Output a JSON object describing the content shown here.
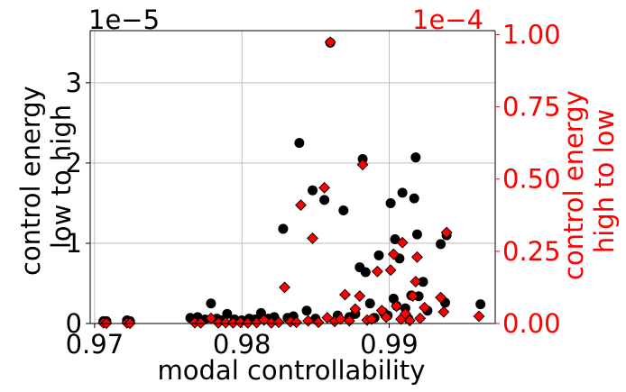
{
  "chart_data": {
    "type": "scatter",
    "xlabel": "modal controllability",
    "ylabel_left": "control energy\nlow to high",
    "ylabel_right": "control energy\nhigh to low",
    "offset_left": "1e−5",
    "offset_right": "1e−4",
    "xlim": [
      0.9697,
      0.9972
    ],
    "ylim_left": [
      0,
      3.65
    ],
    "ylim_right": [
      0,
      1.0138
    ],
    "xticks": [
      0.97,
      0.98,
      0.99
    ],
    "xtick_labels": [
      "0.97",
      "0.98",
      "0.99"
    ],
    "yticks_left": [
      0,
      1,
      2,
      3
    ],
    "ytick_labels_left": [
      "0",
      "1",
      "2",
      "3"
    ],
    "yticks_right": [
      0.0,
      0.25,
      0.5,
      0.75,
      1.0
    ],
    "ytick_labels_right": [
      "0.00",
      "0.25",
      "0.50",
      "0.75",
      "1.00"
    ],
    "grid": true,
    "colors": {
      "left": "#000000",
      "right": "#ff0000"
    },
    "series": [
      {
        "axis": "left",
        "marker": "circle",
        "color": "#000000",
        "points": [
          [
            0.9706,
            0.03
          ],
          [
            0.9708,
            0.03
          ],
          [
            0.9722,
            0.04
          ],
          [
            0.9724,
            0.03
          ],
          [
            0.9765,
            0.07
          ],
          [
            0.977,
            0.08
          ],
          [
            0.9775,
            0.05
          ],
          [
            0.9779,
            0.25
          ],
          [
            0.9783,
            0.06
          ],
          [
            0.9786,
            0.04
          ],
          [
            0.979,
            0.12
          ],
          [
            0.9795,
            0.05
          ],
          [
            0.98,
            0.04
          ],
          [
            0.9805,
            0.06
          ],
          [
            0.9809,
            0.05
          ],
          [
            0.9813,
            0.13
          ],
          [
            0.9818,
            0.06
          ],
          [
            0.9822,
            0.08
          ],
          [
            0.9828,
            1.18
          ],
          [
            0.9831,
            0.07
          ],
          [
            0.9835,
            0.09
          ],
          [
            0.9839,
            2.25
          ],
          [
            0.9844,
            0.16
          ],
          [
            0.9848,
            1.66
          ],
          [
            0.985,
            0.06
          ],
          [
            0.9856,
            1.54
          ],
          [
            0.986,
            3.5
          ],
          [
            0.9865,
            0.1
          ],
          [
            0.9869,
            1.41
          ],
          [
            0.9873,
            0.08
          ],
          [
            0.9877,
            0.12
          ],
          [
            0.988,
            0.7
          ],
          [
            0.9882,
            2.05
          ],
          [
            0.9884,
            0.64
          ],
          [
            0.9887,
            0.25
          ],
          [
            0.989,
            0.07
          ],
          [
            0.9893,
            0.85
          ],
          [
            0.9896,
            0.14
          ],
          [
            0.9899,
            0.1
          ],
          [
            0.9901,
            1.5
          ],
          [
            0.9903,
            0.31
          ],
          [
            0.9904,
            1.05
          ],
          [
            0.9905,
            0.22
          ],
          [
            0.9907,
            0.81
          ],
          [
            0.9909,
            1.63
          ],
          [
            0.9911,
            0.19
          ],
          [
            0.9913,
            0.06
          ],
          [
            0.9915,
            0.35
          ],
          [
            0.9917,
            1.56
          ],
          [
            0.9918,
            2.07
          ],
          [
            0.9919,
            1.11
          ],
          [
            0.992,
            0.34
          ],
          [
            0.9923,
            0.52
          ],
          [
            0.9926,
            0.16
          ],
          [
            0.9935,
            0.99
          ],
          [
            0.9938,
            0.26
          ],
          [
            0.9939,
            1.1
          ],
          [
            0.9962,
            0.24
          ]
        ]
      },
      {
        "axis": "right",
        "marker": "diamond",
        "color": "#ff0000",
        "points": [
          [
            0.9706,
            0.002
          ],
          [
            0.9708,
            0.001
          ],
          [
            0.9722,
            0.002
          ],
          [
            0.9724,
            0.001
          ],
          [
            0.9768,
            0.003
          ],
          [
            0.9772,
            0.002
          ],
          [
            0.9779,
            0.018
          ],
          [
            0.9784,
            0.002
          ],
          [
            0.9789,
            0.003
          ],
          [
            0.9794,
            0.002
          ],
          [
            0.9799,
            0.004
          ],
          [
            0.9804,
            0.002
          ],
          [
            0.981,
            0.003
          ],
          [
            0.9815,
            0.012
          ],
          [
            0.982,
            0.002
          ],
          [
            0.9825,
            0.004
          ],
          [
            0.9829,
            0.125
          ],
          [
            0.9833,
            0.006
          ],
          [
            0.9837,
            0.004
          ],
          [
            0.984,
            0.41
          ],
          [
            0.9845,
            0.009
          ],
          [
            0.9848,
            0.295
          ],
          [
            0.9852,
            0.004
          ],
          [
            0.9856,
            0.47
          ],
          [
            0.9858,
            0.02
          ],
          [
            0.986,
            0.974
          ],
          [
            0.9863,
            0.007
          ],
          [
            0.9867,
            0.015
          ],
          [
            0.987,
            0.1
          ],
          [
            0.9873,
            0.009
          ],
          [
            0.9877,
            0.05
          ],
          [
            0.988,
            0.095
          ],
          [
            0.9882,
            0.55
          ],
          [
            0.9885,
            0.012
          ],
          [
            0.9888,
            0.015
          ],
          [
            0.9892,
            0.18
          ],
          [
            0.9895,
            0.045
          ],
          [
            0.9898,
            0.022
          ],
          [
            0.9901,
            0.185
          ],
          [
            0.9903,
            0.24
          ],
          [
            0.9905,
            0.06
          ],
          [
            0.9908,
            0.015
          ],
          [
            0.9909,
            0.28
          ],
          [
            0.9911,
            0.034
          ],
          [
            0.9914,
            0.01
          ],
          [
            0.9916,
            0.095
          ],
          [
            0.9918,
            0.145
          ],
          [
            0.9919,
            0.23
          ],
          [
            0.9921,
            0.018
          ],
          [
            0.9924,
            0.055
          ],
          [
            0.9935,
            0.09
          ],
          [
            0.9937,
            0.04
          ],
          [
            0.9939,
            0.315
          ],
          [
            0.9961,
            0.025
          ]
        ]
      }
    ]
  }
}
